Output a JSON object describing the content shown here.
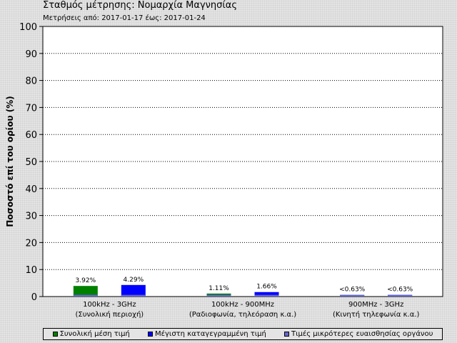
{
  "header": {
    "title": "Σταθμός μέτρησης: Νομαρχία Μαγνησίας",
    "subtitle": "Μετρήσεις από: 2017-01-17 έως: 2017-01-24"
  },
  "chart_data": {
    "type": "bar",
    "ylabel": "Ποσοστό επί του ορίου (%)",
    "ylim": [
      0,
      100
    ],
    "yticks": [
      0,
      10,
      20,
      30,
      40,
      50,
      60,
      70,
      80,
      90,
      100
    ],
    "grid": true,
    "legend_position": "bottom",
    "categories": [
      {
        "line1": "100kHz - 3GHz",
        "line2": "(Συνολική περιοχή)"
      },
      {
        "line1": "100kHz - 900MHz",
        "line2": "(Ραδιοφωνία, τηλεόραση κ.α.)"
      },
      {
        "line1": "900MHz - 3GHz",
        "line2": "(Κινητή τηλεφωνία κ.α.)"
      }
    ],
    "series": [
      {
        "name": "Συνολική μέση τιμή",
        "color": "#008000",
        "values": [
          3.92,
          1.11,
          0.63
        ],
        "labels": [
          "3.92%",
          "1.11%",
          "<0.63%"
        ]
      },
      {
        "name": "Μέγιστη καταγεγραμμένη τιμή",
        "color": "#0000ff",
        "values": [
          4.29,
          1.66,
          0.63
        ],
        "labels": [
          "4.29%",
          "1.66%",
          "<0.63%"
        ]
      }
    ],
    "sensitivity": {
      "name": "Τιμές μικρότερες ευαισθησίας οργάνου",
      "color": "#6666cc",
      "value": 0.63
    }
  }
}
